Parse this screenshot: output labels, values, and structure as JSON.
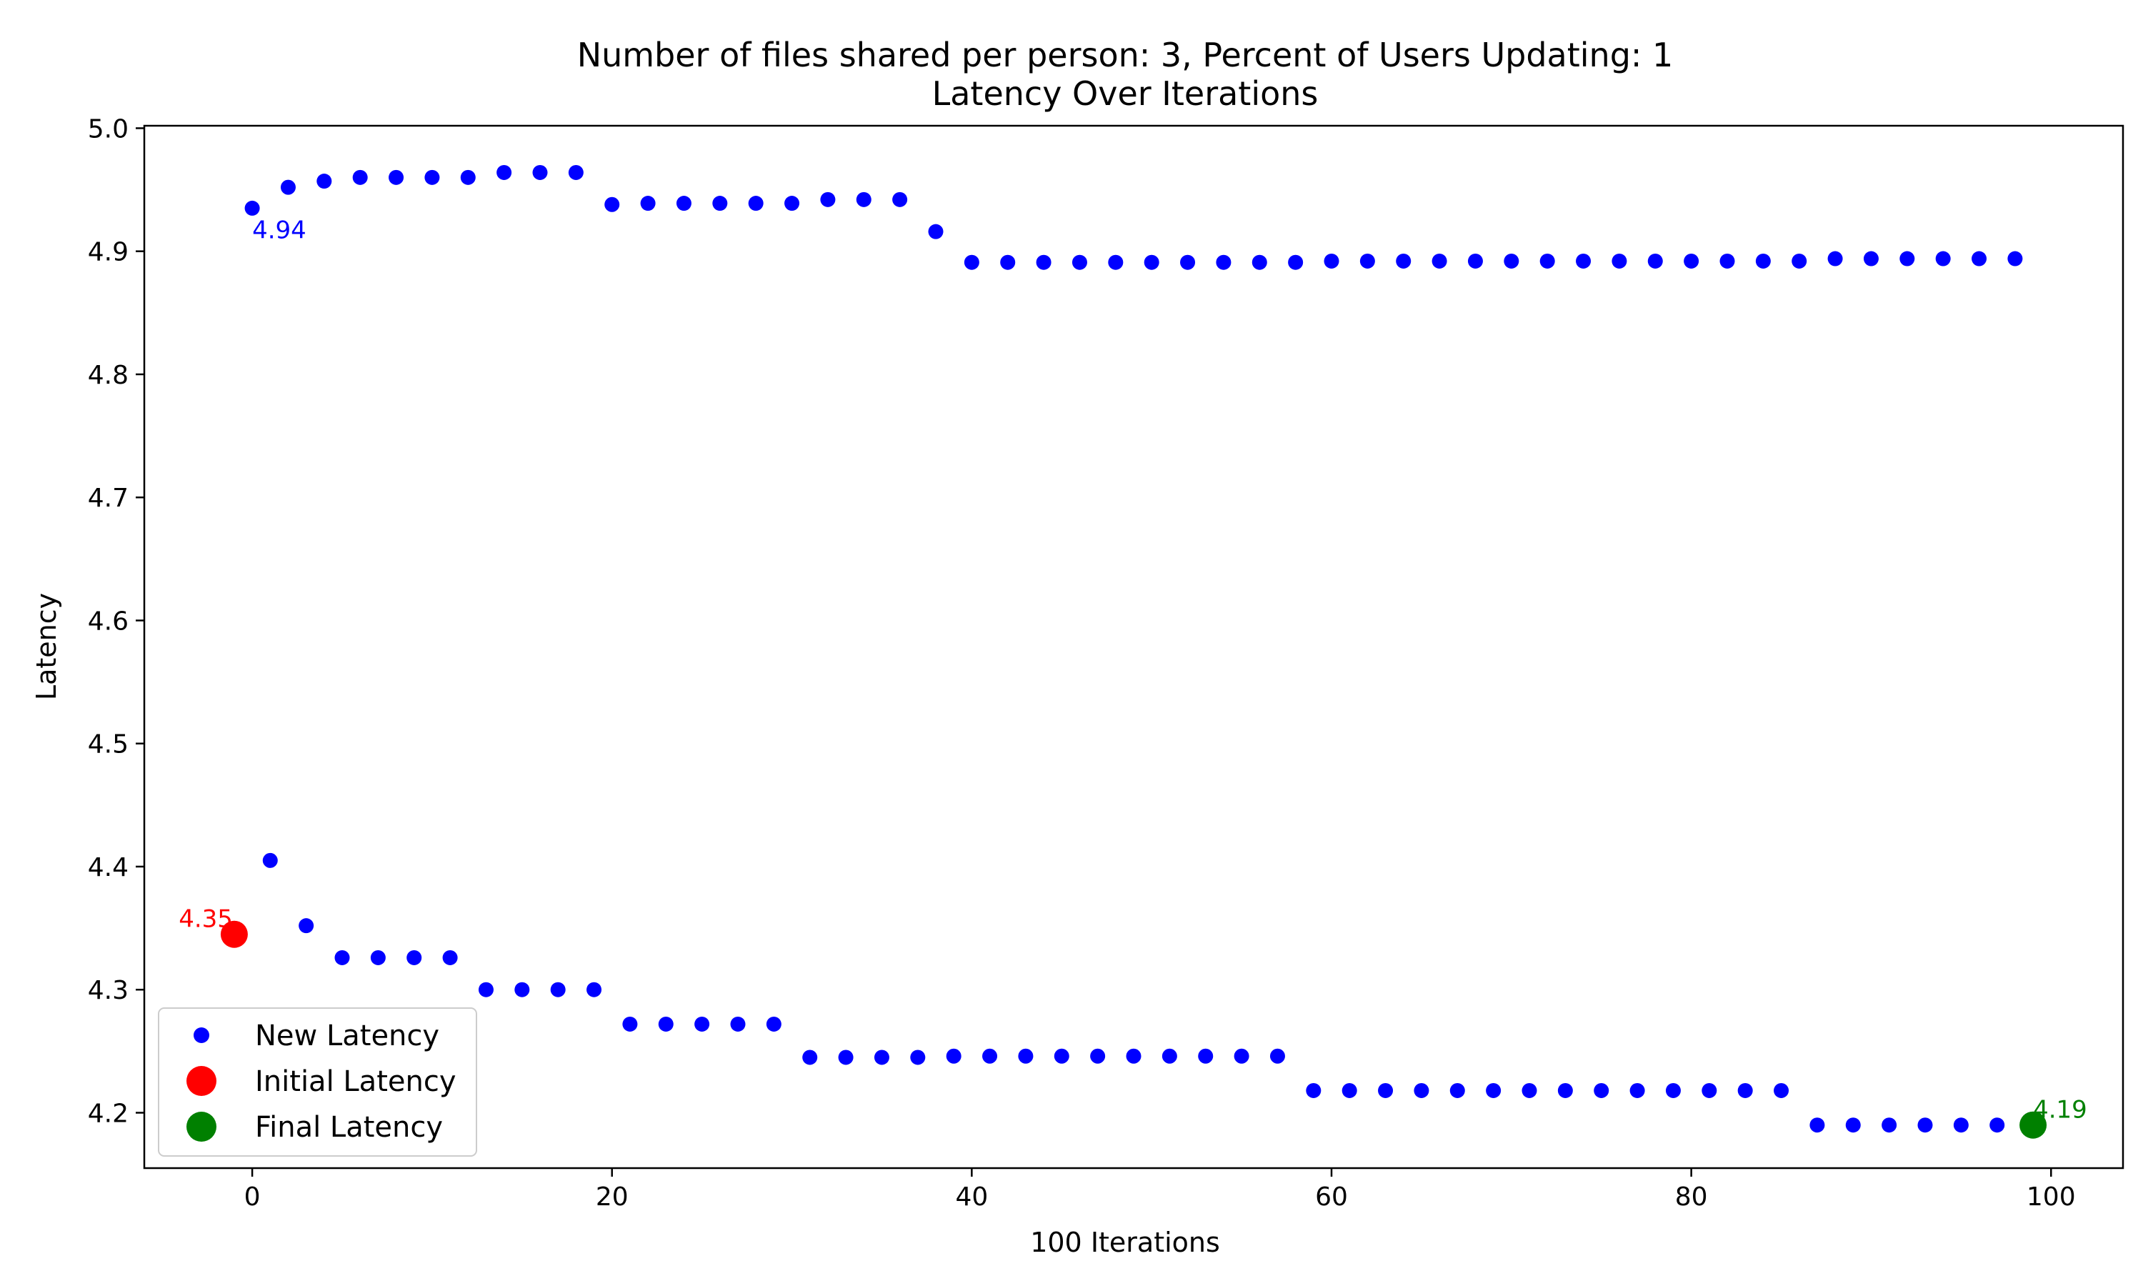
{
  "chart_data": {
    "type": "scatter",
    "title_line1": "Number of files shared per person: 3, Percent of Users Updating: 1",
    "title_line2": "Latency Over Iterations",
    "xlabel": "100 Iterations",
    "ylabel": "Latency",
    "xlim": [
      -6,
      104
    ],
    "ylim": [
      4.155,
      5.002
    ],
    "x_ticks": [
      0,
      20,
      40,
      60,
      80,
      100
    ],
    "y_ticks": [
      4.2,
      4.3,
      4.4,
      4.5,
      4.6,
      4.7,
      4.8,
      4.9,
      5.0
    ],
    "x_tick_labels": [
      "0",
      "20",
      "40",
      "60",
      "80",
      "100"
    ],
    "y_tick_labels": [
      "4.2",
      "4.3",
      "4.4",
      "4.5",
      "4.6",
      "4.7",
      "4.8",
      "4.9",
      "5.0"
    ],
    "grid": false,
    "legend_placement": "lower-left",
    "legend": [
      {
        "label": "New Latency",
        "color": "#0000ff",
        "marker": "small"
      },
      {
        "label": "Initial Latency",
        "color": "#ff0000",
        "marker": "large"
      },
      {
        "label": "Final Latency",
        "color": "#008000",
        "marker": "large"
      }
    ],
    "series": [
      {
        "name": "New Latency",
        "color": "#0000ff",
        "points": [
          [
            0,
            4.935
          ],
          [
            1,
            4.405
          ],
          [
            2,
            4.952
          ],
          [
            3,
            4.352
          ],
          [
            4,
            4.957
          ],
          [
            5,
            4.326
          ],
          [
            6,
            4.96
          ],
          [
            7,
            4.326
          ],
          [
            8,
            4.96
          ],
          [
            9,
            4.326
          ],
          [
            10,
            4.96
          ],
          [
            11,
            4.326
          ],
          [
            12,
            4.96
          ],
          [
            13,
            4.3
          ],
          [
            14,
            4.964
          ],
          [
            15,
            4.3
          ],
          [
            16,
            4.964
          ],
          [
            17,
            4.3
          ],
          [
            18,
            4.964
          ],
          [
            19,
            4.3
          ],
          [
            20,
            4.938
          ],
          [
            21,
            4.272
          ],
          [
            22,
            4.939
          ],
          [
            23,
            4.272
          ],
          [
            24,
            4.939
          ],
          [
            25,
            4.272
          ],
          [
            26,
            4.939
          ],
          [
            27,
            4.272
          ],
          [
            28,
            4.939
          ],
          [
            29,
            4.272
          ],
          [
            30,
            4.939
          ],
          [
            31,
            4.245
          ],
          [
            32,
            4.942
          ],
          [
            33,
            4.245
          ],
          [
            34,
            4.942
          ],
          [
            35,
            4.245
          ],
          [
            36,
            4.942
          ],
          [
            37,
            4.245
          ],
          [
            38,
            4.916
          ],
          [
            39,
            4.246
          ],
          [
            40,
            4.891
          ],
          [
            41,
            4.246
          ],
          [
            42,
            4.891
          ],
          [
            43,
            4.246
          ],
          [
            44,
            4.891
          ],
          [
            45,
            4.246
          ],
          [
            46,
            4.891
          ],
          [
            47,
            4.246
          ],
          [
            48,
            4.891
          ],
          [
            49,
            4.246
          ],
          [
            50,
            4.891
          ],
          [
            51,
            4.246
          ],
          [
            52,
            4.891
          ],
          [
            53,
            4.246
          ],
          [
            54,
            4.891
          ],
          [
            55,
            4.246
          ],
          [
            56,
            4.891
          ],
          [
            57,
            4.246
          ],
          [
            58,
            4.891
          ],
          [
            59,
            4.218
          ],
          [
            60,
            4.892
          ],
          [
            61,
            4.218
          ],
          [
            62,
            4.892
          ],
          [
            63,
            4.218
          ],
          [
            64,
            4.892
          ],
          [
            65,
            4.218
          ],
          [
            66,
            4.892
          ],
          [
            67,
            4.218
          ],
          [
            68,
            4.892
          ],
          [
            69,
            4.218
          ],
          [
            70,
            4.892
          ],
          [
            71,
            4.218
          ],
          [
            72,
            4.892
          ],
          [
            73,
            4.218
          ],
          [
            74,
            4.892
          ],
          [
            75,
            4.218
          ],
          [
            76,
            4.892
          ],
          [
            77,
            4.218
          ],
          [
            78,
            4.892
          ],
          [
            79,
            4.218
          ],
          [
            80,
            4.892
          ],
          [
            81,
            4.218
          ],
          [
            82,
            4.892
          ],
          [
            83,
            4.218
          ],
          [
            84,
            4.892
          ],
          [
            85,
            4.218
          ],
          [
            86,
            4.892
          ],
          [
            87,
            4.19
          ],
          [
            88,
            4.894
          ],
          [
            89,
            4.19
          ],
          [
            90,
            4.894
          ],
          [
            91,
            4.19
          ],
          [
            92,
            4.894
          ],
          [
            93,
            4.19
          ],
          [
            94,
            4.894
          ],
          [
            95,
            4.19
          ],
          [
            96,
            4.894
          ],
          [
            97,
            4.19
          ],
          [
            98,
            4.894
          ]
        ]
      },
      {
        "name": "Initial Latency",
        "color": "#ff0000",
        "points": [
          [
            -1,
            4.345
          ]
        ]
      },
      {
        "name": "Final Latency",
        "color": "#008000",
        "points": [
          [
            99,
            4.19
          ]
        ]
      }
    ],
    "annotations": [
      {
        "text": "4.94",
        "x": 0,
        "y": 4.935,
        "color": "#0000ff",
        "placement": "below-right"
      },
      {
        "text": "4.35",
        "x": -1,
        "y": 4.345,
        "color": "#ff0000",
        "placement": "above-left"
      },
      {
        "text": "4.19",
        "x": 99,
        "y": 4.19,
        "color": "#008000",
        "placement": "above-right"
      }
    ]
  }
}
